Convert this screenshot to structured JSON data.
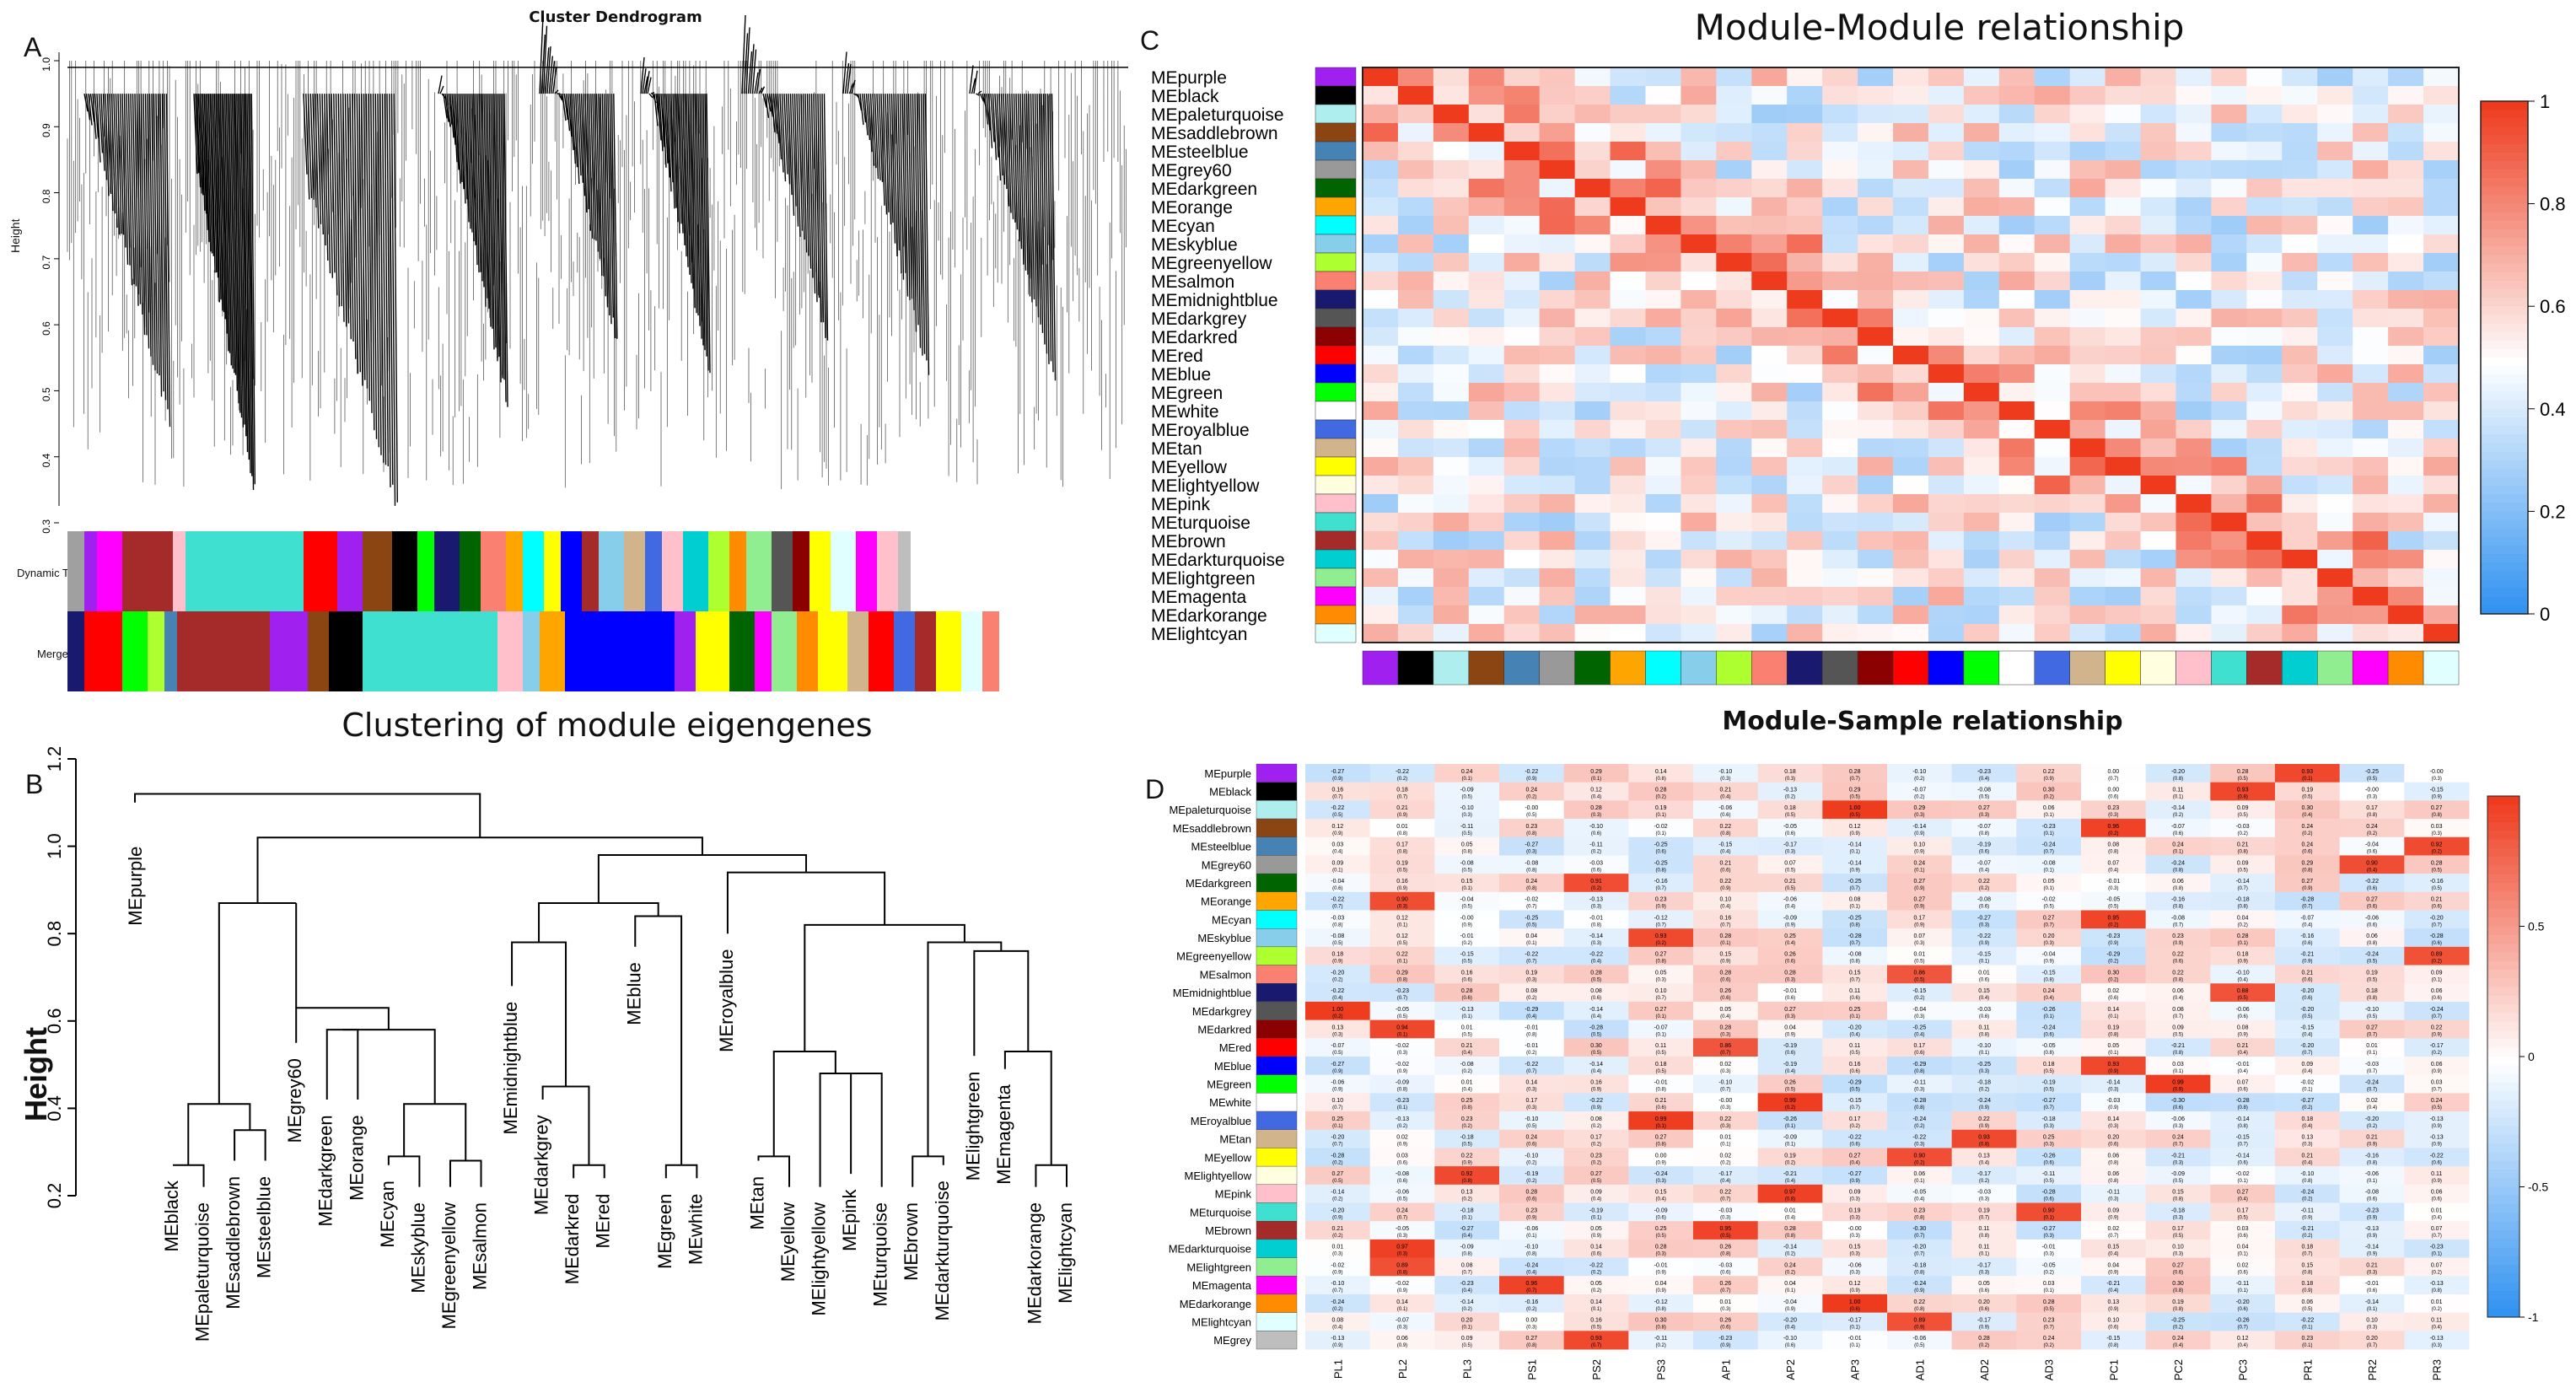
{
  "panels": {
    "A": {
      "letter": "A",
      "title": "Cluster Dendrogram",
      "ylabel": "Height",
      "yticks": [
        "1.0",
        "0.9",
        "0.8",
        "0.7",
        "0.6",
        "0.5",
        "0.4",
        "0.3"
      ],
      "row1": "Dynamic Tree Cut",
      "row2": "Merged colors"
    },
    "B": {
      "letter": "B",
      "title": "Clustering of module eigengenes",
      "ylabel": "Height",
      "yticks": [
        "1.2",
        "1.0",
        "0.8",
        "0.6",
        "0.4",
        "0.2"
      ]
    },
    "C": {
      "letter": "C",
      "title": "Module-Module relationship",
      "colorbar": [
        "1",
        "0.8",
        "0.6",
        "0.4",
        "0.2",
        "0"
      ]
    },
    "D": {
      "letter": "D",
      "title": "Module-Sample relationship",
      "colorbar": [
        "0.5",
        "0",
        "-0.5",
        "-1"
      ]
    }
  },
  "colors": {
    "pos": "#ee3b1e",
    "neg": "#2b8ff0",
    "mid": "#ffffff"
  },
  "chart_data": [
    {
      "type": "dendrogram",
      "panel": "A",
      "title": "Cluster Dendrogram",
      "ylabel": "Height",
      "ylim": [
        0.3,
        1.0
      ],
      "color_rows": [
        "Dynamic Tree Cut",
        "Merged colors"
      ]
    },
    {
      "type": "dendrogram",
      "panel": "B",
      "title": "Clustering of module eigengenes",
      "ylabel": "Height",
      "ylim": [
        0.2,
        1.2
      ],
      "leaves": [
        "MEblack",
        "MEpaleturquoise",
        "MEsaddlebrown",
        "MEsteelblue",
        "MEgrey60",
        "MEdarkgreen",
        "MEorange",
        "MEcyan",
        "MEskyblue",
        "MEgreenyellow",
        "MEsalmon",
        "MEmidnightblue",
        "MEdarkgrey",
        "MEdarkred",
        "MEred",
        "MEblue",
        "MEgreen",
        "MEwhite",
        "MEroyalblue",
        "MEtan",
        "MEyellow",
        "MElightyellow",
        "MEpink",
        "MEturquoise",
        "MEbrown",
        "MEdarkturquoise",
        "MElightgreen",
        "MEmagenta",
        "MEdarkorange",
        "MElightcyan"
      ],
      "top_leaf": "MEpurple"
    },
    {
      "type": "heatmap",
      "panel": "C",
      "title": "Module-Module relationship",
      "rows": [
        "MEpurple",
        "MEblack",
        "MEpaleturquoise",
        "MEsaddlebrown",
        "MEsteelblue",
        "MEgrey60",
        "MEdarkgreen",
        "MEorange",
        "MEcyan",
        "MEskyblue",
        "MEgreenyellow",
        "MEsalmon",
        "MEmidnightblue",
        "MEdarkgrey",
        "MEdarkred",
        "MEred",
        "MEblue",
        "MEgreen",
        "MEwhite",
        "MEroyalblue",
        "MEtan",
        "MEyellow",
        "MElightyellow",
        "MEpink",
        "MEturquoise",
        "MEbrown",
        "MEdarkturquoise",
        "MElightgreen",
        "MEmagenta",
        "MEdarkorange",
        "MElightcyan"
      ],
      "row_colors": [
        "#a020f0",
        "#000000",
        "#afeeee",
        "#8b4513",
        "#4682b4",
        "#999999",
        "#006400",
        "#ffa500",
        "#00ffff",
        "#87ceeb",
        "#adff2f",
        "#fa8072",
        "#191970",
        "#555555",
        "#8b0000",
        "#ff0000",
        "#0000ff",
        "#00ff00",
        "#ffffff",
        "#4169e1",
        "#d2b48c",
        "#ffff00",
        "#ffffe0",
        "#ffc0cb",
        "#40e0d0",
        "#a52a2a",
        "#00ced1",
        "#90ee90",
        "#ff00ff",
        "#ff8c00",
        "#e0ffff"
      ],
      "colorbar_range": [
        0,
        1
      ]
    },
    {
      "type": "heatmap",
      "panel": "D",
      "title": "Module-Sample relationship",
      "rows": [
        "MEpurple",
        "MEblack",
        "MEpaleturquoise",
        "MEsaddlebrown",
        "MEsteelblue",
        "MEgrey60",
        "MEdarkgreen",
        "MEorange",
        "MEcyan",
        "MEskyblue",
        "MEgreenyellow",
        "MEsalmon",
        "MEmidnightblue",
        "MEdarkgrey",
        "MEdarkred",
        "MEred",
        "MEblue",
        "MEgreen",
        "MEwhite",
        "MEroyalblue",
        "MEtan",
        "MEyellow",
        "MElightyellow",
        "MEpink",
        "MEturquoise",
        "MEbrown",
        "MEdarkturquoise",
        "MElightgreen",
        "MEmagenta",
        "MEdarkorange",
        "MElightcyan",
        "MEgrey"
      ],
      "row_colors": [
        "#a020f0",
        "#000000",
        "#afeeee",
        "#8b4513",
        "#4682b4",
        "#999999",
        "#006400",
        "#ffa500",
        "#00ffff",
        "#87ceeb",
        "#adff2f",
        "#fa8072",
        "#191970",
        "#555555",
        "#8b0000",
        "#ff0000",
        "#0000ff",
        "#00ff00",
        "#ffffff",
        "#4169e1",
        "#d2b48c",
        "#ffff00",
        "#ffffe0",
        "#ffc0cb",
        "#40e0d0",
        "#a52a2a",
        "#00ced1",
        "#90ee90",
        "#ff00ff",
        "#ff8c00",
        "#e0ffff",
        "#bebebe"
      ],
      "columns": [
        "PL1",
        "PL2",
        "PL3",
        "PS1",
        "PS2",
        "PS3",
        "AP1",
        "AP2",
        "AP3",
        "AD1",
        "AD2",
        "AD3",
        "PC1",
        "PC2",
        "PC3",
        "PR1",
        "PR2",
        "PR3"
      ],
      "colorbar_range": [
        -1,
        1
      ]
    }
  ]
}
